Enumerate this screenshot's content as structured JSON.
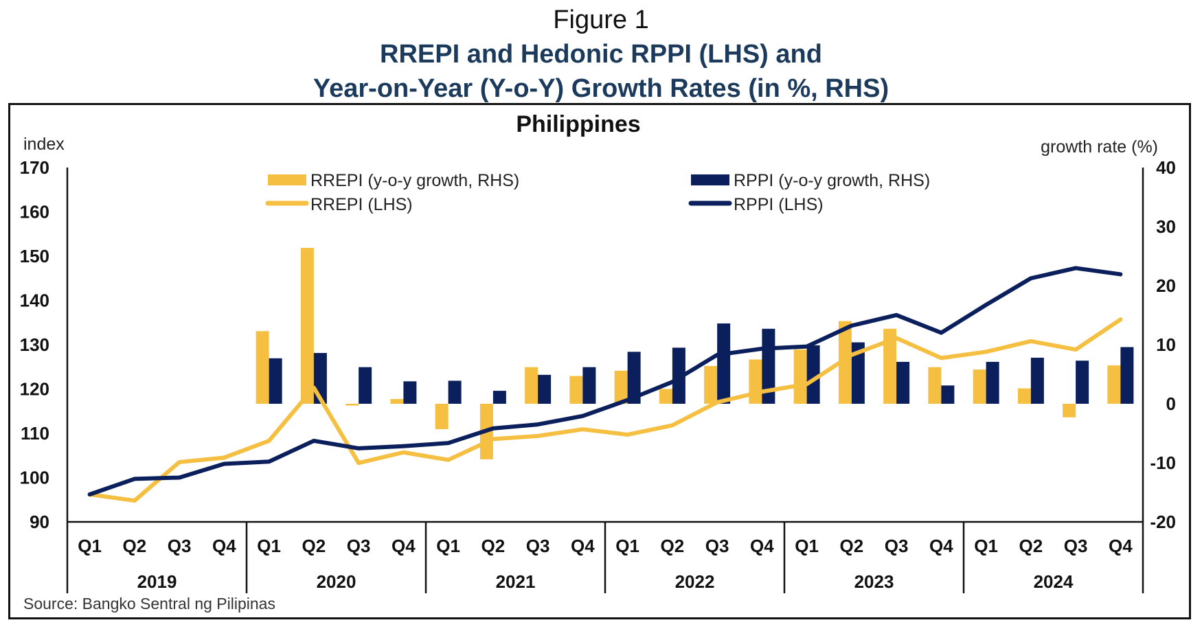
{
  "figure_label": "Figure 1",
  "title_line1": "RREPI and Hedonic RPPI (LHS) and",
  "title_line2": "Year-on-Year (Y-o-Y) Growth Rates (in %, RHS)",
  "source": "Source: Bangko Sentral ng Pilipinas",
  "colors": {
    "rrepi": "#F5BF42",
    "rppi": "#0A1F5C"
  },
  "chart_data": {
    "type": "bar+line",
    "subtitle": "Philippines",
    "ylabel_left": "index",
    "ylabel_right": "growth rate (%)",
    "ylim_left": [
      90,
      170
    ],
    "ylim_right": [
      -20,
      40
    ],
    "yticks_left": [
      "170",
      "160",
      "150",
      "140",
      "130",
      "120",
      "110",
      "100",
      "90"
    ],
    "yticks_right": [
      "40",
      "30",
      "20",
      "10",
      "0",
      "-10",
      "-20"
    ],
    "yticks_left_values": [
      170,
      160,
      150,
      140,
      130,
      120,
      110,
      100,
      90
    ],
    "yticks_right_values": [
      40,
      30,
      20,
      10,
      0,
      -10,
      -20
    ],
    "years": [
      "2019",
      "2020",
      "2021",
      "2022",
      "2023",
      "2024"
    ],
    "quarters": [
      "Q1",
      "Q2",
      "Q3",
      "Q4"
    ],
    "legend": [
      "RREPI  (y-o-y growth, RHS)",
      "RPPI  (y-o-y growth, RHS)",
      "RREPI  (LHS)",
      "RPPI  (LHS)"
    ],
    "legend_placement": "top-center",
    "series": [
      {
        "name": "RREPI (y-o-y growth, RHS)",
        "kind": "bar",
        "axis": "right",
        "values": [
          null,
          null,
          null,
          null,
          12.3,
          26.4,
          -0.3,
          0.8,
          -4.3,
          -9.4,
          6.2,
          4.7,
          5.6,
          2.5,
          6.4,
          7.5,
          9.2,
          14.0,
          12.7,
          6.2,
          5.8,
          2.6,
          -2.3,
          6.5
        ]
      },
      {
        "name": "RPPI (y-o-y growth, RHS)",
        "kind": "bar",
        "axis": "right",
        "values": [
          null,
          null,
          null,
          null,
          7.7,
          8.6,
          6.2,
          3.8,
          3.9,
          2.2,
          4.9,
          6.2,
          8.8,
          9.5,
          13.6,
          12.7,
          9.9,
          10.4,
          7.1,
          3.1,
          7.1,
          7.8,
          7.3,
          9.6
        ]
      },
      {
        "name": "RREPI (LHS)",
        "kind": "line",
        "axis": "left",
        "values": [
          96.2,
          94.8,
          103.5,
          104.5,
          108.3,
          120.3,
          103.3,
          105.7,
          104.0,
          108.7,
          109.4,
          110.9,
          109.7,
          111.8,
          117.0,
          119.4,
          121.1,
          127.7,
          131.5,
          127.0,
          128.4,
          130.8,
          128.9,
          135.7
        ]
      },
      {
        "name": "RPPI (LHS)",
        "kind": "line",
        "axis": "left",
        "values": [
          96.2,
          99.7,
          100.0,
          103.1,
          103.6,
          108.3,
          106.6,
          107.1,
          107.8,
          111.1,
          112.0,
          113.9,
          117.5,
          121.6,
          127.7,
          129.1,
          129.6,
          134.3,
          136.7,
          132.7,
          139.0,
          145.0,
          147.3,
          145.9
        ]
      }
    ]
  }
}
